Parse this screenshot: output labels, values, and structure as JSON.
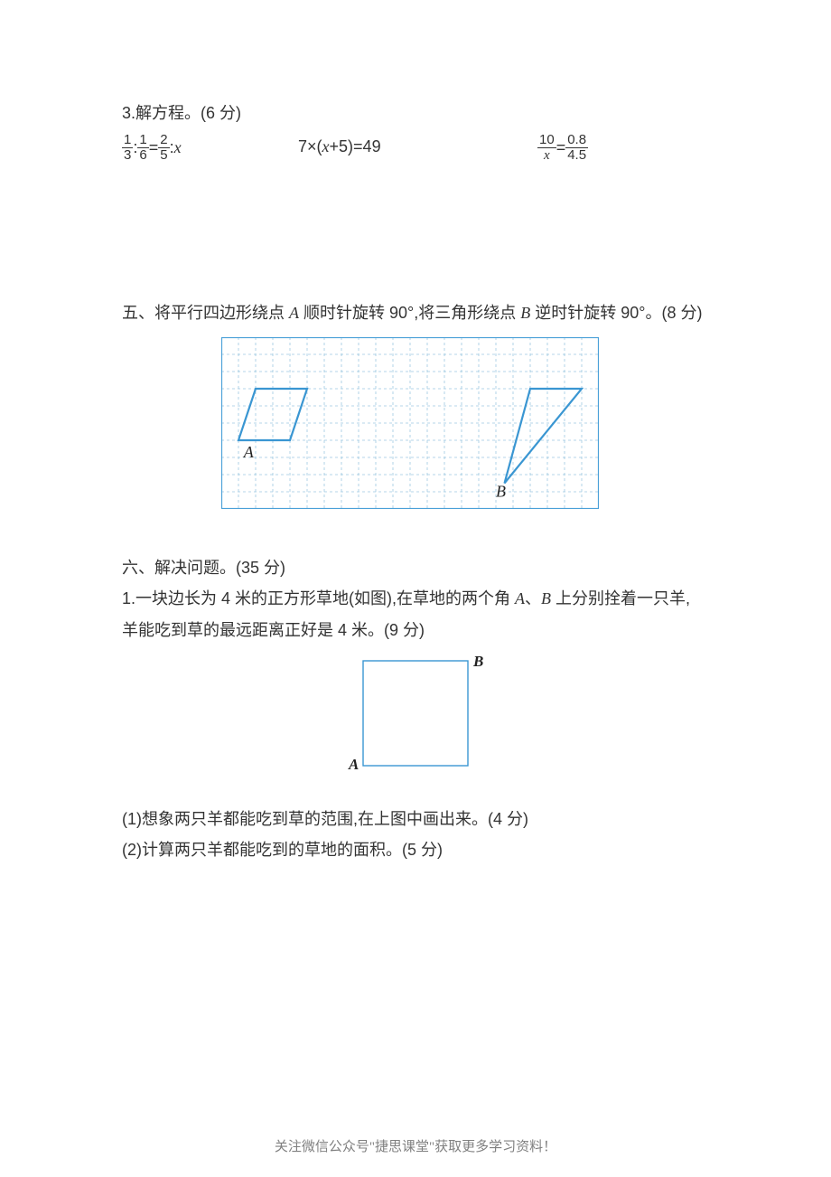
{
  "q3": {
    "title": "3.解方程。(6 分)",
    "eq1": {
      "f1_num": "1",
      "f1_den": "3",
      "f2_num": "1",
      "f2_den": "6",
      "f3_num": "2",
      "f3_den": "5",
      "var": "x"
    },
    "eq2": {
      "text_pre": "7×(",
      "var": "x",
      "text_post": "+5)=49"
    },
    "eq3": {
      "f1_num": "10",
      "f1_den_var": "x",
      "f2_num": "0.8",
      "f2_den": "4.5"
    }
  },
  "section5": {
    "text_p1": "五、将平行四边形绕点 ",
    "pointA": "A",
    "text_p2": " 顺时针旋转 90°,将三角形绕点 ",
    "pointB": "B",
    "text_p3": " 逆时针旋转 90°。(8 分)",
    "grid": {
      "cols": 22,
      "rows": 10,
      "cell": 19,
      "line_color": "#4aa0d8",
      "dash_color": "#9ec9e2",
      "shape_color": "#3a96d2",
      "shape_width": 2.2,
      "label_font": 18,
      "parallelogram": {
        "top_left": [
          2,
          3
        ],
        "top_right": [
          5,
          3
        ],
        "bot_right": [
          4,
          6
        ],
        "bot_left": [
          1,
          6
        ],
        "labelA": "A",
        "labelA_pos": [
          1.3,
          7.0
        ]
      },
      "triangle": {
        "p1": [
          18,
          3
        ],
        "p2": [
          21,
          3
        ],
        "p3": [
          16.5,
          8.5
        ],
        "labelB": "B",
        "labelB_pos": [
          16.0,
          9.3
        ]
      }
    }
  },
  "section6": {
    "title": "六、解决问题。(35 分)",
    "q1_line1_p1": "1.一块边长为 4 米的正方形草地(如图),在草地的两个角 ",
    "q1_A": "A",
    "q1_mid": "、",
    "q1_B": "B",
    "q1_line1_p2": " 上分别拴着一只羊,",
    "q1_line2": "羊能吃到草的最远距离正好是 4 米。(9 分)",
    "square": {
      "size": 116,
      "stroke": "#3a96d2",
      "stroke_width": 1.4,
      "labelA": "A",
      "labelB": "B",
      "label_font": 17
    },
    "sub1": "(1)想象两只羊都能吃到草的范围,在上图中画出来。(4 分)",
    "sub2": "(2)计算两只羊都能吃到的草地的面积。(5 分)"
  },
  "footer": "关注微信公众号\"捷思课堂\"获取更多学习资料！"
}
